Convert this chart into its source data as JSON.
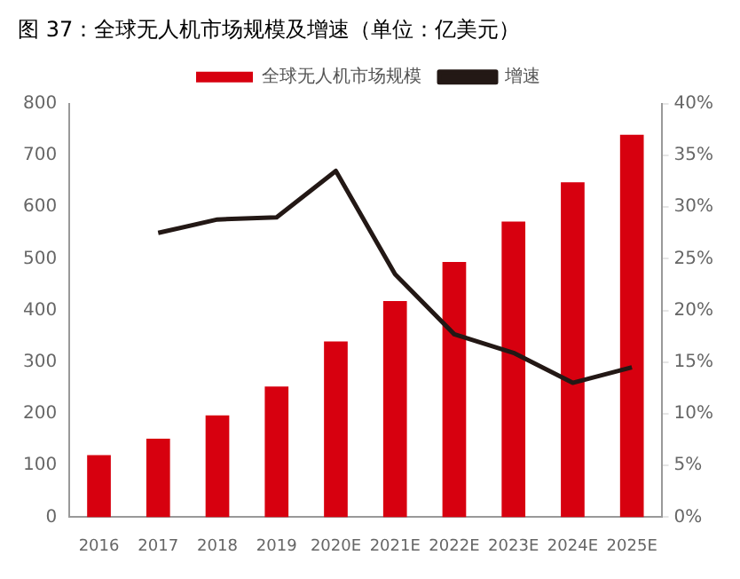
{
  "chart_data": {
    "type": "bar",
    "title": "图 37：全球无人机市场规模及增速（单位：亿美元）",
    "categories": [
      "2016",
      "2017",
      "2018",
      "2019",
      "2020E",
      "2021E",
      "2022E",
      "2023E",
      "2024E",
      "2025E"
    ],
    "series": [
      {
        "name": "全球无人机市场规模",
        "color": "#d7000f",
        "values": [
          120,
          152,
          197,
          253,
          340,
          418,
          494,
          572,
          648,
          740
        ]
      },
      {
        "name": "增速",
        "type": "line",
        "axis": "y2",
        "color": "#231815",
        "marker": "none",
        "values": [
          null,
          27.5,
          28.8,
          29.0,
          33.5,
          23.5,
          17.7,
          15.9,
          13.0,
          14.5
        ]
      }
    ],
    "ylim": [
      0,
      800
    ],
    "yticks": [
      0,
      100,
      200,
      300,
      400,
      500,
      600,
      700,
      800
    ],
    "y2lim": [
      0,
      40
    ],
    "y2ticks": [
      {
        "value": 0,
        "label": "0%"
      },
      {
        "value": 5,
        "label": "5%"
      },
      {
        "value": 10,
        "label": "10%"
      },
      {
        "value": 15,
        "label": "15%"
      },
      {
        "value": 20,
        "label": "20%"
      },
      {
        "value": 25,
        "label": "25%"
      },
      {
        "value": 30,
        "label": "30%"
      },
      {
        "value": 35,
        "label": "35%"
      },
      {
        "value": 40,
        "label": "40%"
      }
    ],
    "grid": false,
    "legend": "top"
  }
}
